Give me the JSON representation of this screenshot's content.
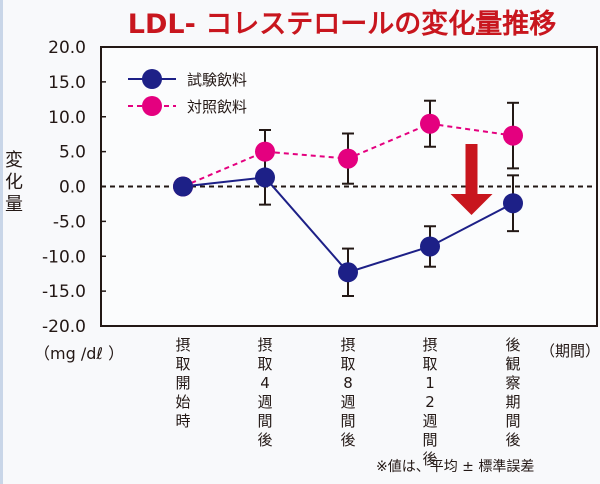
{
  "chart_data": {
    "type": "line",
    "title": "LDL- コレステロールの変化量推移",
    "ylabel": "変化量",
    "yunit": "（mg /dℓ ）",
    "xlabel": "（期間）",
    "ylim": [
      -20,
      20
    ],
    "yticks": [
      20,
      15,
      10,
      5,
      0,
      -5,
      -10,
      -15,
      -20
    ],
    "ytick_labels": [
      "20.0",
      "15.0",
      "10.0",
      "5.0",
      "0.0",
      "-5.0",
      "-10.0",
      "-15.0",
      "-20.0"
    ],
    "categories": [
      "摂取開始時",
      "摂取4週間後",
      "摂取8週間後",
      "摂取12週間後",
      "後観察期間後"
    ],
    "grid": false,
    "legend_position": "top-left",
    "reference_line": 0,
    "series": [
      {
        "name": "試験飲料",
        "color": "#1d2087",
        "line_style": "solid",
        "values": [
          0,
          1.3,
          -12.3,
          -8.6,
          -2.4
        ],
        "errors": [
          0,
          3.9,
          3.4,
          2.9,
          4.0
        ]
      },
      {
        "name": "対照飲料",
        "color": "#e4007f",
        "line_style": "dashed",
        "values": [
          0,
          5.0,
          4.0,
          9.0,
          7.3
        ],
        "errors": [
          0,
          3.1,
          3.6,
          3.3,
          4.7
        ]
      }
    ],
    "annotations": [
      {
        "type": "arrow-down",
        "color": "#c8161e",
        "between_categories": [
          "摂取12週間後",
          "後観察期間後"
        ]
      }
    ],
    "footnote": "※値は、平均 ± 標準誤差"
  }
}
